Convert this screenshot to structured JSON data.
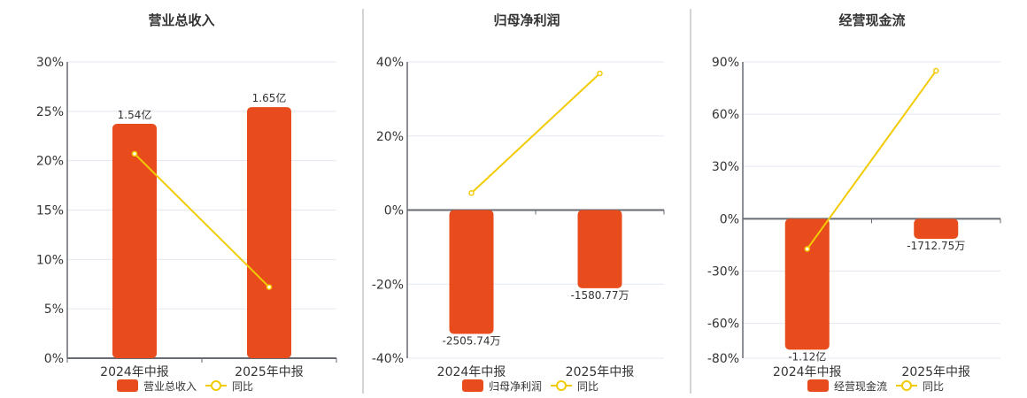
{
  "colors": {
    "bar": "#e84c1c",
    "line": "#f2cb05",
    "grid": "#e3e8f2",
    "axis": "#666a73",
    "divider": "#aaaaaa"
  },
  "chart_data": [
    {
      "type": "bar+line",
      "title": "营业总收入",
      "categories": [
        "2024年中报",
        "2025年中报"
      ],
      "bar_series": {
        "name": "营业总收入",
        "values_wan": [
          15400,
          16500
        ],
        "labels": [
          "1.54亿",
          "1.65亿"
        ]
      },
      "line_series": {
        "name": "同比",
        "values": [
          20.7,
          7.2
        ]
      },
      "yticks": [
        "30%",
        "25%",
        "20%",
        "15%",
        "10%",
        "5%",
        "0%"
      ],
      "ylim": [
        0,
        30
      ],
      "grid": true,
      "legend": "bottom"
    },
    {
      "type": "bar+line",
      "title": "归母净利润",
      "categories": [
        "2024年中报",
        "2025年中报"
      ],
      "bar_series": {
        "name": "归母净利润",
        "values_wan": [
          -2505.74,
          -1580.77
        ],
        "labels": [
          "-2505.74万",
          "-1580.77万"
        ]
      },
      "line_series": {
        "name": "同比",
        "values": [
          4.6,
          36.9
        ]
      },
      "yticks": [
        "40%",
        "20%",
        "0%",
        "-20%",
        "-40%"
      ],
      "ylim": [
        -40,
        40
      ],
      "grid": true,
      "legend": "bottom"
    },
    {
      "type": "bar+line",
      "title": "经营现金流",
      "categories": [
        "2024年中报",
        "2025年中报"
      ],
      "bar_series": {
        "name": "经营现金流",
        "values_wan": [
          -11200,
          -1712.75
        ],
        "labels": [
          "-1.12亿",
          "-1712.75万"
        ]
      },
      "line_series": {
        "name": "同比",
        "values": [
          -17.3,
          84.9
        ]
      },
      "yticks": [
        "90%",
        "60%",
        "30%",
        "0%",
        "-30%",
        "-60%",
        "-80%"
      ],
      "ylim": [
        -80,
        90
      ],
      "grid": true,
      "legend": "bottom"
    }
  ]
}
